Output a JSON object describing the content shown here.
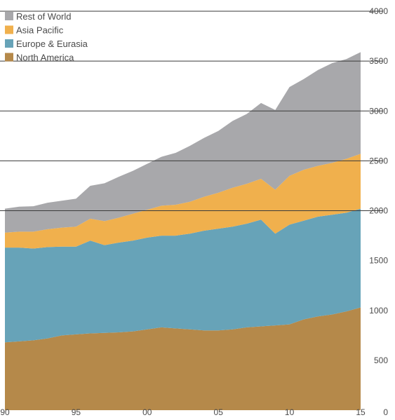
{
  "chart_data": {
    "type": "area",
    "stacked": true,
    "x": [
      1990,
      1991,
      1992,
      1993,
      1994,
      1995,
      1996,
      1997,
      1998,
      1999,
      2000,
      2001,
      2002,
      2003,
      2004,
      2005,
      2006,
      2007,
      2008,
      2009,
      2010,
      2011,
      2012,
      2013,
      2014,
      2015
    ],
    "x_tick_values": [
      1990,
      1995,
      2000,
      2005,
      2010,
      2015
    ],
    "x_tick_labels": [
      "90",
      "95",
      "00",
      "05",
      "10",
      "15"
    ],
    "y_ticks": [
      0,
      500,
      1000,
      1500,
      2000,
      2500,
      3000,
      3500,
      4000
    ],
    "ylim": [
      0,
      4000
    ],
    "xlim": [
      1990,
      2015
    ],
    "gridlines_at": [
      2000,
      2500,
      3000,
      3500,
      4000
    ],
    "legend_position": "top-left",
    "series": [
      {
        "name": "North America",
        "color": "#b5894a",
        "values": [
          680,
          690,
          700,
          720,
          750,
          760,
          770,
          775,
          780,
          790,
          810,
          830,
          820,
          810,
          800,
          800,
          810,
          830,
          840,
          850,
          860,
          910,
          940,
          960,
          990,
          1030
        ]
      },
      {
        "name": "Europe & Eurasia",
        "color": "#67a3b8",
        "values": [
          950,
          940,
          920,
          915,
          890,
          880,
          930,
          880,
          900,
          910,
          920,
          920,
          930,
          960,
          1000,
          1020,
          1030,
          1040,
          1070,
          920,
          1000,
          990,
          1000,
          1000,
          990,
          990
        ]
      },
      {
        "name": "Asia Pacific",
        "color": "#f0b04d",
        "values": [
          150,
          160,
          170,
          180,
          190,
          200,
          220,
          240,
          250,
          270,
          280,
          300,
          310,
          320,
          340,
          360,
          390,
          400,
          410,
          440,
          490,
          510,
          510,
          520,
          540,
          550
        ]
      },
      {
        "name": "Rest of World",
        "color": "#a8a8ab",
        "values": [
          240,
          250,
          255,
          265,
          270,
          280,
          330,
          380,
          410,
          430,
          460,
          490,
          520,
          560,
          590,
          620,
          670,
          700,
          760,
          800,
          890,
          910,
          960,
          1000,
          1000,
          1020
        ]
      }
    ]
  }
}
